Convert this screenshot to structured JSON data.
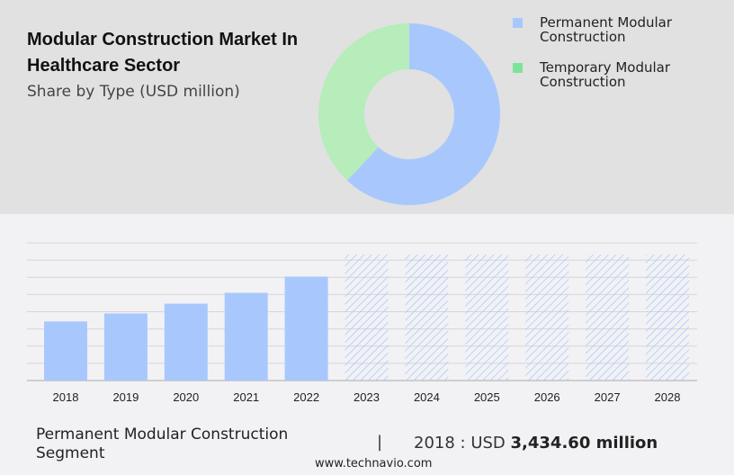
{
  "title": "Modular Construction Market In Healthcare Sector",
  "subtitle": "Share by Type (USD million)",
  "colors": {
    "permanent": "#a8c8fd",
    "temporary_legend": "#7ee39a",
    "temporary_pie": "#b7ecbb",
    "forecast_hatch": "#a8c8fd"
  },
  "chart_data": [
    {
      "type": "pie",
      "donut": true,
      "legend_position": "right",
      "series": [
        {
          "name": "Permanent Modular Construction",
          "value": 62
        },
        {
          "name": "Temporary Modular Construction",
          "value": 38
        }
      ]
    },
    {
      "type": "bar",
      "grid": true,
      "categories": [
        "2018",
        "2019",
        "2020",
        "2021",
        "2022",
        "2023",
        "2024",
        "2025",
        "2026",
        "2027",
        "2028"
      ],
      "values": [
        3434.6,
        3900,
        4470,
        5100,
        6040,
        null,
        null,
        null,
        null,
        null,
        null
      ],
      "forecast": [
        false,
        false,
        false,
        false,
        false,
        true,
        true,
        true,
        true,
        true,
        true
      ],
      "ylim": [
        0,
        8000
      ],
      "xlabel": "",
      "ylabel": ""
    }
  ],
  "footer": {
    "segment": "Permanent Modular Construction Segment",
    "separator": "|",
    "year_label": "2018 : USD",
    "value": "3,434.60 million",
    "site": "www.technavio.com"
  }
}
